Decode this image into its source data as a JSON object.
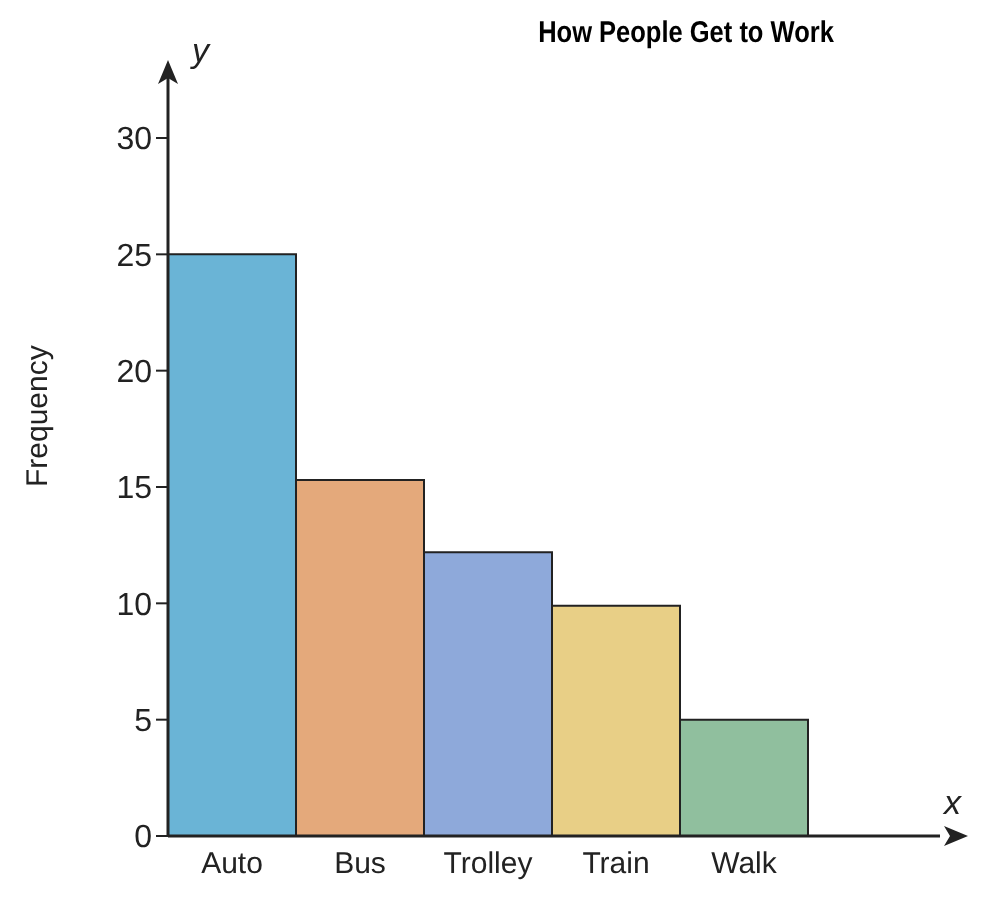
{
  "chart_data": {
    "type": "bar",
    "title": "How People Get to Work",
    "xlabel": "x",
    "ylabel": "Frequency",
    "annotations": [
      "y"
    ],
    "categories": [
      "Auto",
      "Bus",
      "Trolley",
      "Train",
      "Walk"
    ],
    "values": [
      25,
      15.3,
      12.2,
      9.9,
      5
    ],
    "colors": [
      "#6ab4d6",
      "#e4a97b",
      "#8ea9da",
      "#e8cf86",
      "#90bf9e"
    ],
    "ylim": [
      0,
      30
    ],
    "yticks": [
      0,
      5,
      10,
      15,
      20,
      25,
      30
    ],
    "grid": false,
    "legend": false
  }
}
